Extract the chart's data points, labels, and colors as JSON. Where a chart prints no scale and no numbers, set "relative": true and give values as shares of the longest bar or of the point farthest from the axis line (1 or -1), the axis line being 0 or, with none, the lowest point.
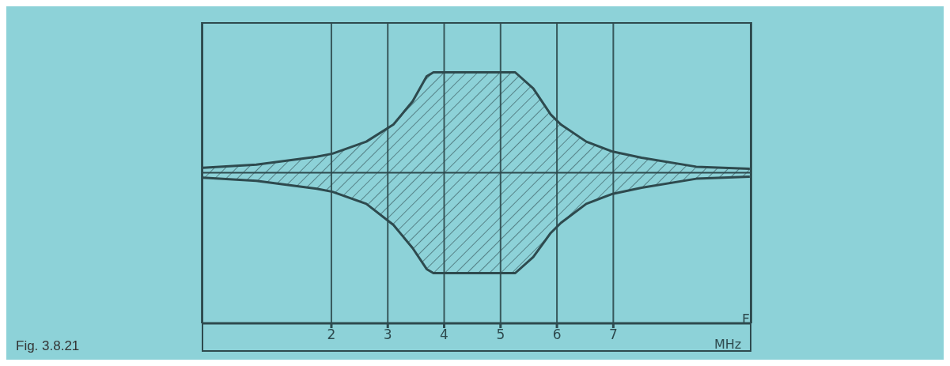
{
  "chart_data": {
    "type": "area",
    "relative": true,
    "xlabel": "F",
    "annotations": [
      "Fig. 3.8.21",
      "MHz"
    ],
    "x": [
      -0.28,
      0.67,
      1.74,
      2.02,
      2.62,
      3.1,
      3.44,
      3.69,
      3.81,
      5.26,
      5.58,
      5.89,
      6.07,
      6.52,
      6.99,
      7.5,
      8.47,
      9.42
    ],
    "series": [
      {
        "color": "#2e4a4e",
        "values": [
          0.05,
          0.08,
          0.16,
          0.19,
          0.31,
          0.48,
          0.71,
          0.96,
          1,
          1,
          0.84,
          0.58,
          0.48,
          0.31,
          0.21,
          0.15,
          0.06,
          0.04
        ]
      },
      {
        "color": "#2e4a4e",
        "values": [
          -0.05,
          -0.08,
          -0.16,
          -0.19,
          -0.31,
          -0.52,
          -0.75,
          -0.96,
          -1,
          -1,
          -0.84,
          -0.6,
          -0.5,
          -0.31,
          -0.21,
          -0.15,
          -0.06,
          -0.04
        ]
      }
    ],
    "xlim": [
      -0.3,
      9.45
    ],
    "xticks": [
      2,
      3,
      4,
      5,
      6,
      7
    ],
    "grid": "x"
  }
}
